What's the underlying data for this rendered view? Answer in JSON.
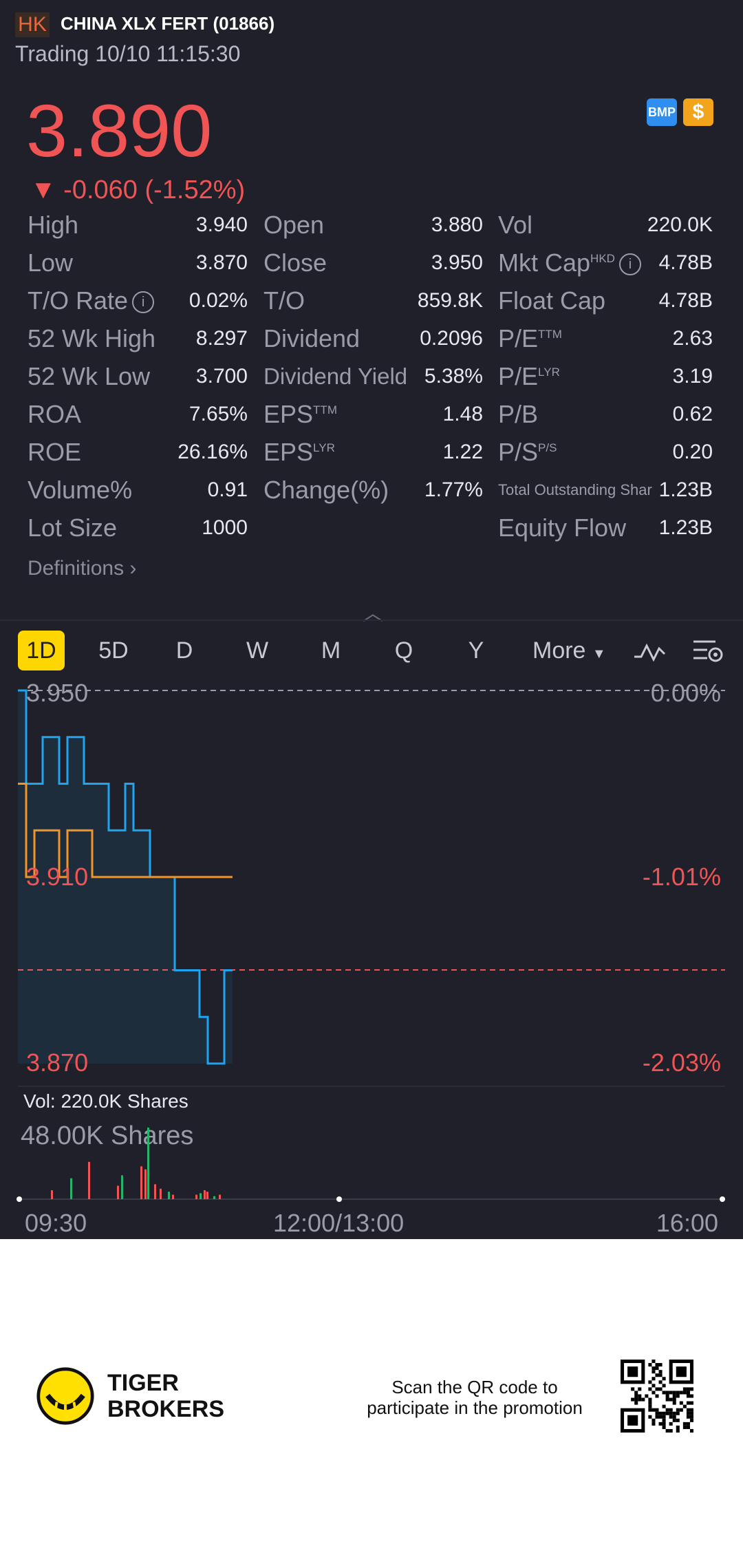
{
  "header": {
    "market": "HK",
    "name": "CHINA XLX FERT (01866)",
    "status": "Trading 10/10 11:15:30"
  },
  "quote": {
    "price": "3.890",
    "change": "▼ -0.060 (-1.52%)",
    "badges": [
      "BMP",
      "$"
    ]
  },
  "stats": [
    {
      "label": "High",
      "value": "3.940"
    },
    {
      "label": "Open",
      "value": "3.880"
    },
    {
      "label": "Vol",
      "value": "220.0K"
    },
    {
      "label": "Low",
      "value": "3.870"
    },
    {
      "label": "Close",
      "value": "3.950"
    },
    {
      "label": "Mkt Cap",
      "sup": "HKD",
      "value": "4.78B"
    },
    {
      "label": "T/O Rate",
      "value": "0.02%"
    },
    {
      "label": "T/O",
      "value": "859.8K"
    },
    {
      "label": "Float Cap",
      "value": "4.78B"
    },
    {
      "label": "52 Wk High",
      "value": "8.297"
    },
    {
      "label": "Dividend",
      "value": "0.2096"
    },
    {
      "label": "P/E",
      "sup": "TTM",
      "value": "2.63"
    },
    {
      "label": "52 Wk Low",
      "value": "3.700"
    },
    {
      "label": "Dividend Yield",
      "value": "5.38%"
    },
    {
      "label": "P/E",
      "sup": "LYR",
      "value": "3.19"
    },
    {
      "label": "ROA",
      "value": "7.65%"
    },
    {
      "label": "EPS",
      "sup": "TTM",
      "value": "1.48"
    },
    {
      "label": "P/B",
      "value": "0.62"
    },
    {
      "label": "ROE",
      "value": "26.16%"
    },
    {
      "label": "EPS",
      "sup": "LYR",
      "value": "1.22"
    },
    {
      "label": "P/S",
      "sup": "P/S",
      "value": "0.20"
    },
    {
      "label": "Volume%",
      "value": "0.91"
    },
    {
      "label": "Change(%)",
      "value": "1.77%"
    },
    {
      "label": "Total Outstanding Shar",
      "value": "1.23B"
    },
    {
      "label": "Lot Size",
      "value": "1000"
    },
    {
      "label": "Equity Flow",
      "value": "1.23B"
    }
  ],
  "definitions_label": "Definitions",
  "tabs": [
    "1D",
    "5D",
    "D",
    "W",
    "M",
    "Q",
    "Y"
  ],
  "tab_more": "More",
  "chart": {
    "price_labels": [
      "3.950",
      "3.910",
      "3.870"
    ],
    "pct_labels": [
      "0.00%",
      "-1.01%",
      "-2.03%"
    ],
    "volume_title": "Vol:   220.0K Shares",
    "volume_scale": "48.00K Shares",
    "time_labels": [
      "09:30",
      "12:00/13:00",
      "16:00"
    ]
  },
  "chart_data": {
    "type": "line",
    "ylim": [
      3.87,
      3.95
    ],
    "series": [
      {
        "values": [
          3.95,
          3.93,
          3.93,
          3.94,
          3.94,
          3.93,
          3.94,
          3.94,
          3.93,
          3.93,
          3.93,
          3.92,
          3.92,
          3.93,
          3.92,
          3.92,
          3.91,
          3.91,
          3.91,
          3.89,
          3.89,
          3.89,
          3.88,
          3.87,
          3.87,
          3.89
        ]
      },
      {
        "values": [
          3.93,
          3.91,
          3.92,
          3.92,
          3.92,
          3.91,
          3.92,
          3.92,
          3.92,
          3.91,
          3.91,
          3.91,
          3.91,
          3.91,
          3.91,
          3.91,
          3.91,
          3.91,
          3.91,
          3.91,
          3.91,
          3.91,
          3.91,
          3.91,
          3.91,
          3.91
        ]
      }
    ],
    "volume": [
      6,
      14,
      25,
      9,
      16,
      22,
      20,
      48,
      10,
      7,
      5,
      3,
      3,
      4,
      6,
      5,
      2,
      3
    ]
  },
  "colors": {
    "down": "#f15454",
    "up": "#27b36b",
    "price_line": "#1fa5f0",
    "avg_line": "#f0952a",
    "accent": "#ffd600"
  },
  "footer": {
    "brand_line1": "TIGER",
    "brand_line2": "BROKERS",
    "promo_line1": "Scan the QR code to",
    "promo_line2": "participate in the promotion"
  }
}
